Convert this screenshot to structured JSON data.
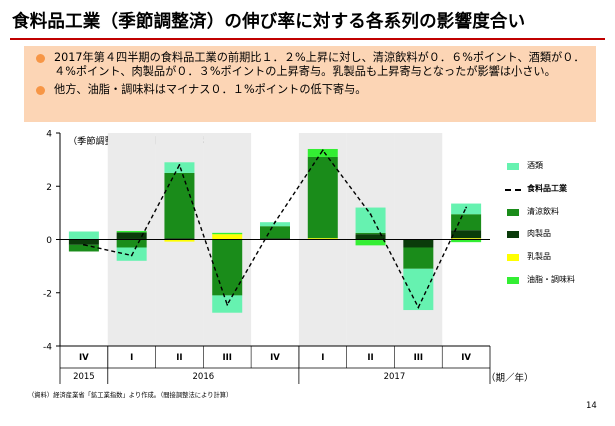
{
  "slide": {
    "title": "食料品工業（季節調整済）の伸び率に対する各系列の影響度合い",
    "bullets": [
      "2017年第４四半期の食料品工業の前期比１．２%上昇に対し、清涼飲料が０．６%ポイント、酒類が０．４%ポイント、肉製品が０．３%ポイントの上昇寄与。乳製品も上昇寄与となったが影響は小さい。",
      "他方、油脂・調味料はマイナス０．１%ポイントの低下寄与。"
    ],
    "source": "（資料）経済産業省「鉱工業指数」より作成。（間接調整法により計算）",
    "page_number": "14",
    "accent_color": "#c00000",
    "box_color": "#fcd5b5",
    "bullet_color": "#f79646"
  },
  "chart_data": {
    "type": "bar",
    "stacked": true,
    "unit_note": "（季節調整済、前期比、%、%ポイント）",
    "x_unit": "（期／年）",
    "categories": [
      "IV",
      "I",
      "II",
      "III",
      "IV",
      "I",
      "II",
      "III",
      "IV"
    ],
    "year_groups": [
      {
        "label": "2015",
        "start": 0,
        "end": 0
      },
      {
        "label": "2016",
        "start": 1,
        "end": 4
      },
      {
        "label": "2017",
        "start": 5,
        "end": 8
      }
    ],
    "shaded_categories": [
      1,
      2,
      3,
      5,
      6,
      7
    ],
    "ylim": [
      -4,
      4
    ],
    "yticks": [
      4,
      2,
      0,
      -2,
      -4
    ],
    "series": [
      {
        "name": "乳製品",
        "color": "#ffff00",
        "values": [
          0.0,
          0.02,
          -0.08,
          0.2,
          0.0,
          0.05,
          -0.02,
          0.0,
          0.05
        ]
      },
      {
        "name": "肉製品",
        "color": "#0a3b0a",
        "values": [
          -0.2,
          0.25,
          0.05,
          0.0,
          0.05,
          0.0,
          0.2,
          -0.3,
          0.3
        ]
      },
      {
        "name": "清涼飲料",
        "color": "#1a8c1a",
        "values": [
          -0.25,
          -0.3,
          2.45,
          -2.1,
          0.45,
          3.05,
          0.05,
          -0.8,
          0.6
        ]
      },
      {
        "name": "油脂・調味料",
        "color": "#33ee33",
        "values": [
          0.0,
          0.05,
          0.0,
          0.05,
          0.0,
          0.3,
          -0.2,
          0.0,
          -0.1
        ]
      },
      {
        "name": "酒類",
        "color": "#66f2b0",
        "values": [
          0.3,
          -0.5,
          0.4,
          -0.65,
          0.15,
          0.0,
          0.95,
          -1.55,
          0.4
        ]
      }
    ],
    "line": {
      "name": "食料品工業",
      "values": [
        -0.2,
        -0.6,
        2.8,
        -2.45,
        0.65,
        3.35,
        0.95,
        -2.55,
        1.2
      ]
    },
    "legend": [
      "酒類",
      "食料品工業",
      "清涼飲料",
      "肉製品",
      "乳製品",
      "油脂・調味料"
    ]
  }
}
